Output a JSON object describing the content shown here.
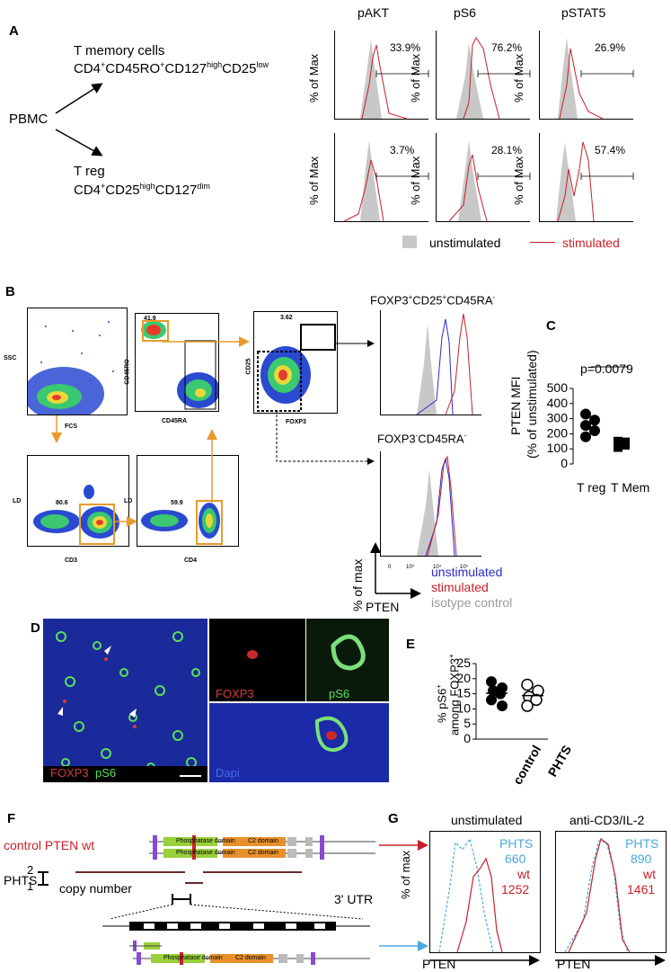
{
  "panelA": {
    "label": "A",
    "pbmc": "PBMC",
    "tmem_title": "T memory cells",
    "tmem_pheno": "CD4+CD45RO+CD127highCD25low",
    "treg_title": "T reg",
    "treg_pheno": "CD4+CD25highCD127dim",
    "columns": [
      "pAKT",
      "pS6",
      "pSTAT5"
    ],
    "ylabel": "% of Max",
    "row1_values": [
      "33.9%",
      "76.2%",
      "26.9%"
    ],
    "row2_values": [
      "3.7%",
      "28.1%",
      "57.4%"
    ],
    "legend_unstim": "unstimulated",
    "legend_stim": "stimulated"
  },
  "panelB": {
    "label": "B",
    "gate_values": [
      "41.9",
      "3.62",
      "80.6",
      "59.9"
    ],
    "axis_ssc": "SSC",
    "axis_fcs": "FCS",
    "axis_cd45ro": "CD45RO",
    "axis_cd45ra": "CD45RA",
    "axis_cd25": "CD25",
    "axis_foxp3": "FOXP3",
    "axis_ld": "LD",
    "axis_cd3": "CD3",
    "axis_cd4": "CD4",
    "hist_title1": "FOXP3+CD25+CD45RA-",
    "hist_title2": "FOXP3-CD45RA-",
    "ylabel": "% of max",
    "xlabel": "PTEN",
    "legend": [
      "unstimulated",
      "stimulated",
      "isotype control"
    ]
  },
  "panelC": {
    "label": "C",
    "pvalue": "p=0.0079",
    "ylabel1": "PTEN MFI",
    "ylabel2": "(% of unstimulated)",
    "yticks": [
      "500",
      "400",
      "300",
      "200",
      "100",
      "0"
    ],
    "categories": [
      "T reg",
      "T Mem"
    ]
  },
  "panelD": {
    "label": "D",
    "foxp3": "FOXP3",
    "ps6": "pS6",
    "dapi": "Dapi"
  },
  "panelE": {
    "label": "E",
    "ylabel1": "% pS6+",
    "ylabel2": "among FOXP3+",
    "yticks": [
      "25",
      "20",
      "15",
      "10",
      "5",
      "0"
    ],
    "categories": [
      "control",
      "PHTS"
    ]
  },
  "panelF": {
    "label": "F",
    "control_label": "control PTEN wt",
    "phts_label": "PHTS",
    "copy_number": "copy number",
    "cn_2": "2",
    "cn_1": "1",
    "utr": "3' UTR",
    "phosphatase": "Phosphatase domain",
    "c2": "C2 domain"
  },
  "panelG": {
    "label": "G",
    "title1": "unstimulated",
    "title2": "anti-CD3/IL-2",
    "ylabel": "% of max",
    "xlabel": "PTEN",
    "phts": "PHTS",
    "wt": "wt",
    "phts_val1": "660",
    "wt_val1": "1252",
    "phts_val2": "890",
    "wt_val2": "1461"
  },
  "chart_data": [
    {
      "type": "scatter",
      "title": "",
      "xlabel": "",
      "ylabel": "PTEN MFI (% of unstimulated)",
      "categories": [
        "T reg",
        "T Mem"
      ],
      "series": [
        {
          "name": "T reg",
          "values": [
            330,
            290,
            255,
            220,
            180
          ]
        },
        {
          "name": "T Mem",
          "values": [
            150,
            145,
            135,
            125,
            110
          ]
        }
      ],
      "ylim": [
        0,
        500
      ]
    },
    {
      "type": "scatter",
      "title": "",
      "xlabel": "",
      "ylabel": "% pS6+ among FOXP3+",
      "categories": [
        "control",
        "PHTS"
      ],
      "series": [
        {
          "name": "control",
          "values": [
            19,
            17,
            16,
            15,
            13,
            11
          ]
        },
        {
          "name": "PHTS",
          "values": [
            18,
            16,
            14,
            13,
            11
          ]
        }
      ],
      "ylim": [
        0,
        25
      ]
    }
  ],
  "colors": {
    "red": "#c8202a",
    "blue": "#2a2ad0",
    "grey": "#c8c8c8",
    "cyan": "#4aa8e0",
    "orange": "#e89a2a"
  }
}
